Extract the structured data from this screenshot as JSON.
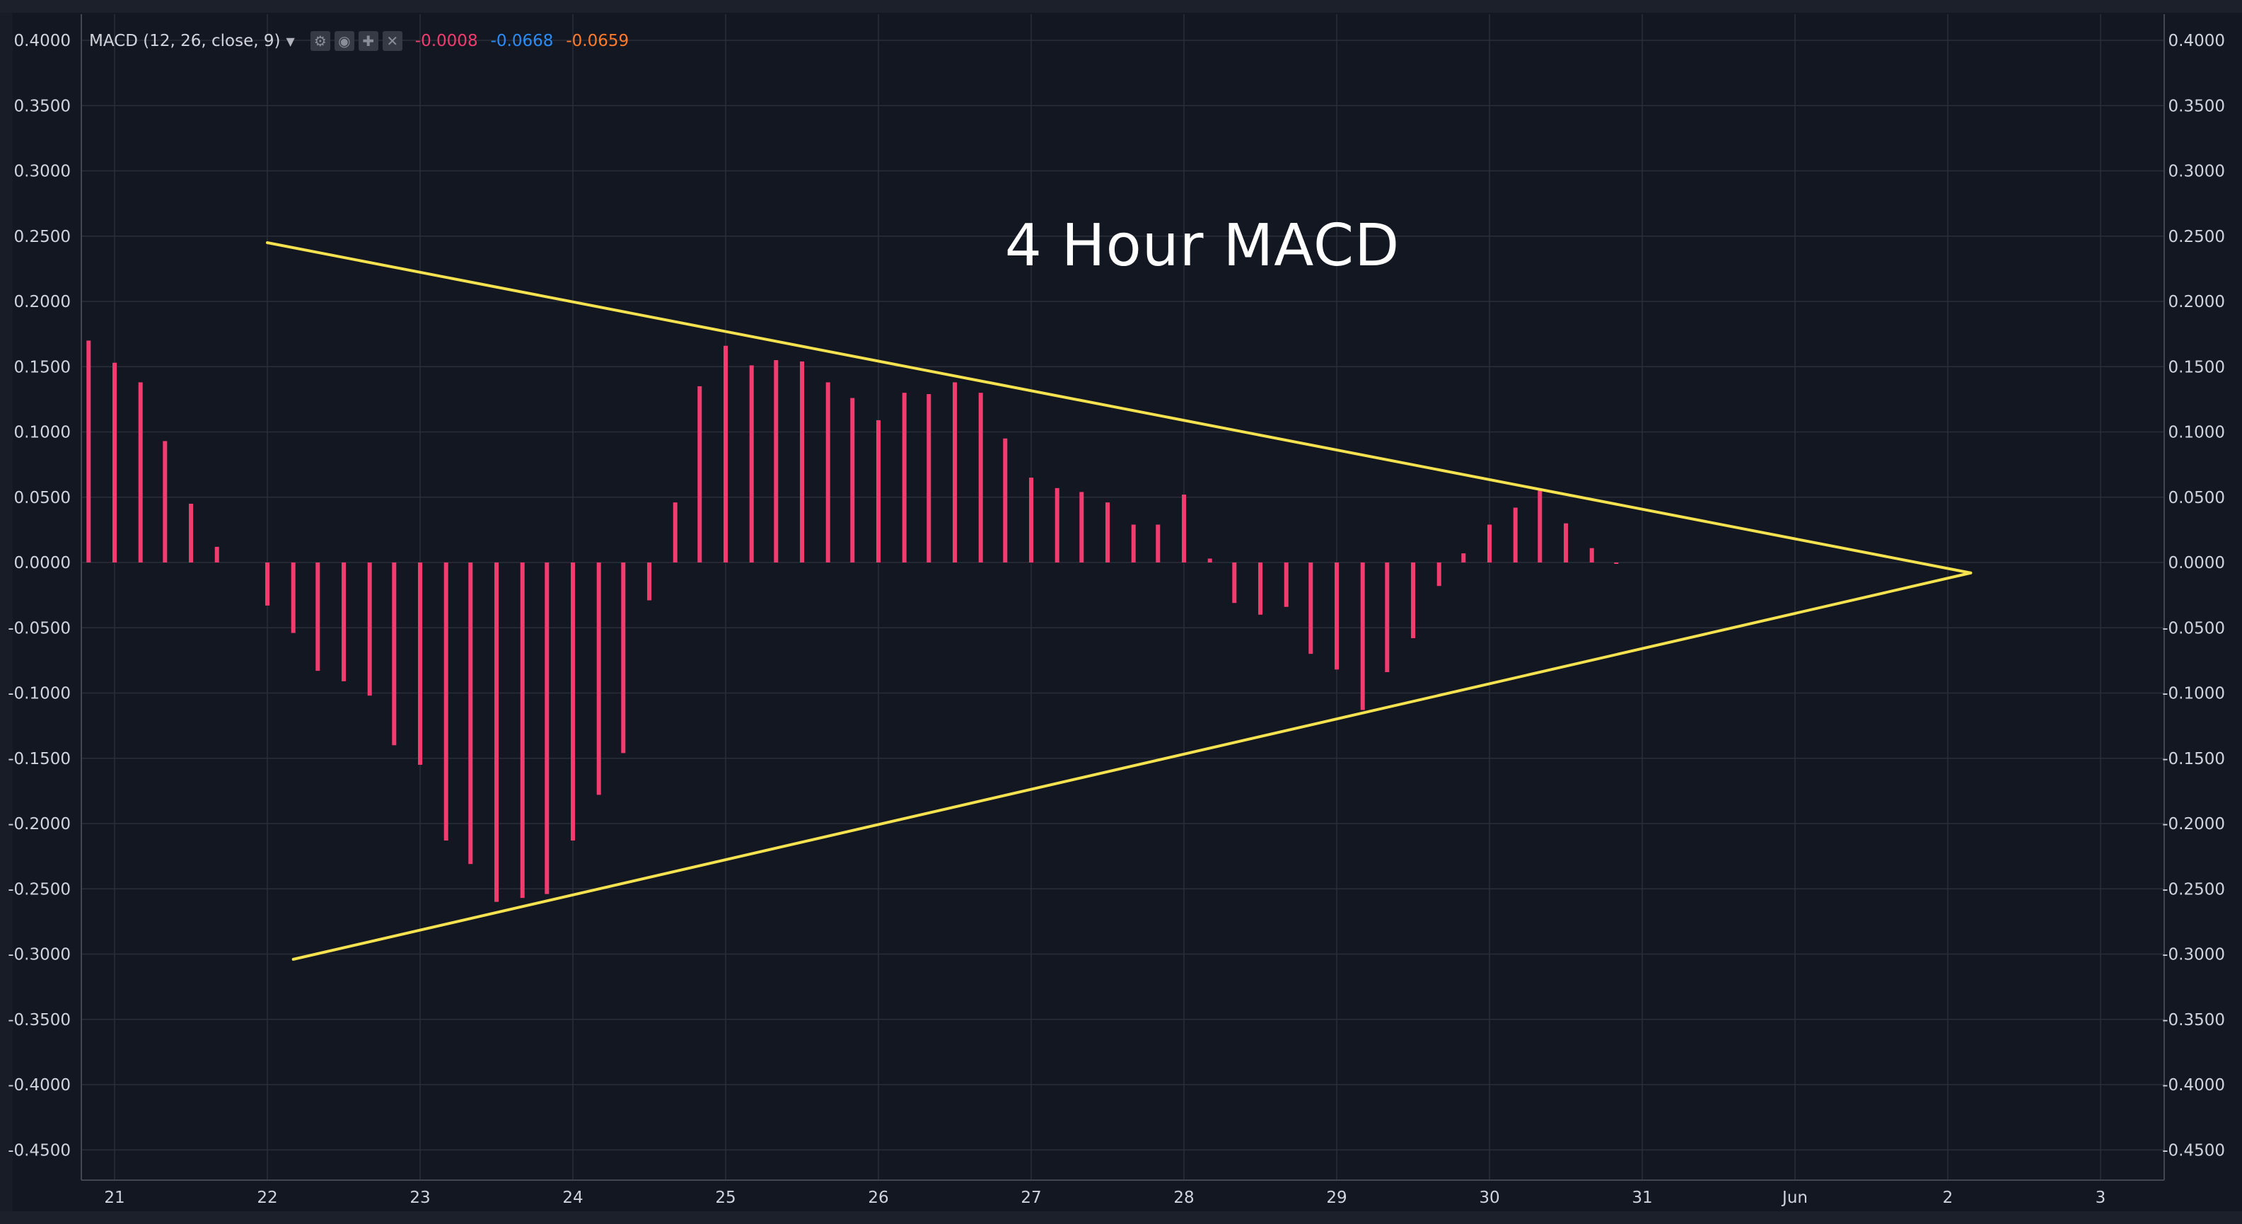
{
  "indicator": {
    "label": "MACD (12, 26, close, 9)",
    "histogram_value": "-0.0008",
    "macd_value": "-0.0668",
    "signal_value": "-0.0659",
    "buttons": [
      "settings-icon",
      "eye-icon",
      "more-icon",
      "close-icon"
    ]
  },
  "annotation": "4 Hour MACD",
  "colors": {
    "background": "#131722",
    "grid": "#2a2e39",
    "histogram": "#f23b6e",
    "trendline": "#f7e34f",
    "text": "#d1d4dc",
    "macd": "#2b8cf7",
    "signal": "#ff7b2c"
  },
  "chart_data": {
    "type": "bar",
    "title": "4 Hour MACD",
    "xlabel": "",
    "ylabel": "",
    "ylim": [
      -0.48,
      0.42
    ],
    "x_ticks": [
      {
        "label": "21",
        "x": 0
      },
      {
        "label": "22",
        "x": 1
      },
      {
        "label": "23",
        "x": 2
      },
      {
        "label": "24",
        "x": 3
      },
      {
        "label": "25",
        "x": 4
      },
      {
        "label": "26",
        "x": 5
      },
      {
        "label": "27",
        "x": 6
      },
      {
        "label": "28",
        "x": 7
      },
      {
        "label": "29",
        "x": 8
      },
      {
        "label": "30",
        "x": 9
      },
      {
        "label": "31",
        "x": 10
      },
      {
        "label": "Jun",
        "x": 11
      },
      {
        "label": "2",
        "x": 12
      },
      {
        "label": "3",
        "x": 13
      }
    ],
    "y_ticks": [
      "0.4000",
      "0.3500",
      "0.3000",
      "0.2500",
      "0.2000",
      "0.1500",
      "0.1000",
      "0.0500",
      "0.0000",
      "-0.0500",
      "-0.1000",
      "-0.1500",
      "-0.2000",
      "-0.2500",
      "-0.3000",
      "-0.3500",
      "-0.4000",
      "-0.4500"
    ],
    "y_tick_values": [
      0.4,
      0.35,
      0.3,
      0.25,
      0.2,
      0.15,
      0.1,
      0.05,
      0,
      -0.05,
      -0.1,
      -0.15,
      -0.2,
      -0.25,
      -0.3,
      -0.35,
      -0.4,
      -0.45
    ],
    "grid": true,
    "series": [
      {
        "x": [
          -0.17,
          0,
          0.17,
          0.33,
          0.5,
          0.67,
          1,
          1.17,
          1.33,
          1.5,
          1.67,
          1.83,
          2,
          2.17,
          2.33,
          2.5,
          2.67,
          2.83,
          3,
          3.17,
          3.33,
          3.5,
          3.67,
          3.83,
          4,
          4.17,
          4.33,
          4.5,
          4.67,
          4.83,
          5,
          5.17,
          5.33,
          5.5,
          5.67,
          5.83,
          6,
          6.17,
          6.33,
          6.5,
          6.67,
          6.83,
          7,
          7.17,
          7.33,
          7.5,
          7.67,
          7.83,
          8,
          8.17,
          8.33,
          8.5,
          8.67,
          8.83,
          9,
          9.17,
          9.33,
          9.5,
          9.67,
          9.83
        ],
        "values": [
          0.17,
          0.153,
          0.138,
          0.093,
          0.045,
          0.012,
          -0.033,
          -0.054,
          -0.083,
          -0.091,
          -0.102,
          -0.14,
          -0.155,
          -0.213,
          -0.231,
          -0.26,
          -0.257,
          -0.254,
          -0.213,
          -0.178,
          -0.146,
          -0.029,
          0.046,
          0.135,
          0.166,
          0.151,
          0.155,
          0.154,
          0.138,
          0.126,
          0.109,
          0.13,
          0.129,
          0.138,
          0.13,
          0.095,
          0.065,
          0.057,
          0.054,
          0.046,
          0.029,
          0.029,
          0.052,
          0.003,
          -0.031,
          -0.04,
          -0.034,
          -0.07,
          -0.082,
          -0.113,
          -0.084,
          -0.058,
          -0.018,
          0.007,
          0.029,
          0.042,
          0.055,
          0.03,
          0.011,
          -0.0008
        ]
      }
    ],
    "trendlines": [
      {
        "x": [
          1,
          12.15
        ],
        "y": [
          0.245,
          -0.008
        ]
      },
      {
        "x": [
          1.17,
          12.15
        ],
        "y": [
          -0.304,
          -0.008
        ]
      }
    ]
  }
}
